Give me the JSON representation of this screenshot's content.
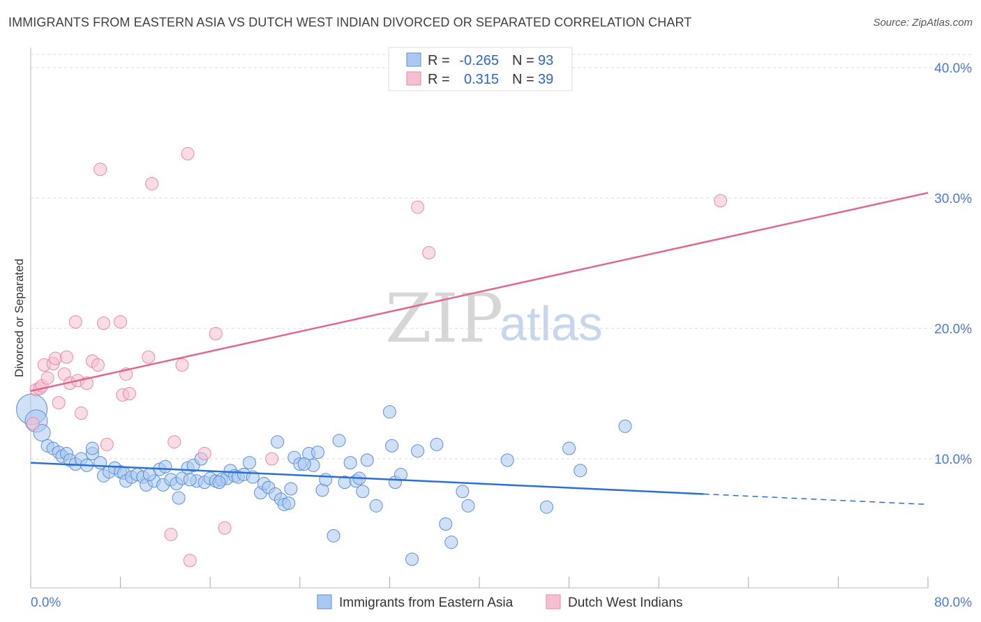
{
  "header": {
    "title": "IMMIGRANTS FROM EASTERN ASIA VS DUTCH WEST INDIAN DIVORCED OR SEPARATED CORRELATION CHART",
    "source": "Source: ZipAtlas.com"
  },
  "watermark": {
    "zip": "ZIP",
    "atlas": "atlas"
  },
  "colors": {
    "blue_fill": "#aac8f0",
    "blue_stroke": "#5b8fd8",
    "blue_line": "#2a6fd6",
    "pink_fill": "#f6bfd0",
    "pink_stroke": "#e98aa8",
    "pink_line": "#e06890",
    "grid": "#d8d8d8",
    "tick_label": "#4a7bd0"
  },
  "legend": {
    "rows": [
      {
        "r_label": "R =",
        "r_value": "-0.265",
        "n_label": "N =",
        "n_value": "93"
      },
      {
        "r_label": "R =",
        "r_value": "0.315",
        "n_label": "N =",
        "n_value": "39"
      }
    ]
  },
  "chart_data": {
    "type": "scatter",
    "title": "IMMIGRANTS FROM EASTERN ASIA VS DUTCH WEST INDIAN DIVORCED OR SEPARATED CORRELATION CHART",
    "xlabel": "",
    "ylabel": "Divorced or Separated",
    "xlim": [
      0,
      80
    ],
    "ylim": [
      0,
      42
    ],
    "x_tick_labels": [
      "0.0%",
      "80.0%"
    ],
    "y_ticks": [
      10,
      20,
      30,
      40
    ],
    "y_tick_labels": [
      "10.0%",
      "20.0%",
      "30.0%",
      "40.0%"
    ],
    "grid": "horizontal dashed",
    "legend_placement": "top-center",
    "series": [
      {
        "name": "Immigrants from Eastern Asia",
        "color": "#aac8f0",
        "points": [
          [
            0.1,
            13.8
          ],
          [
            0.5,
            12.9
          ],
          [
            1.0,
            12.0
          ],
          [
            1.5,
            11.0
          ],
          [
            2.0,
            10.8
          ],
          [
            2.5,
            10.5
          ],
          [
            2.8,
            10.2
          ],
          [
            3.2,
            10.4
          ],
          [
            3.5,
            9.9
          ],
          [
            4.0,
            9.6
          ],
          [
            4.5,
            10.0
          ],
          [
            5.0,
            9.5
          ],
          [
            5.5,
            10.4
          ],
          [
            5.5,
            10.8
          ],
          [
            6.2,
            9.7
          ],
          [
            6.5,
            8.7
          ],
          [
            7.0,
            9.0
          ],
          [
            7.5,
            9.3
          ],
          [
            8.0,
            9.0
          ],
          [
            8.3,
            8.9
          ],
          [
            8.5,
            8.3
          ],
          [
            9.0,
            8.6
          ],
          [
            9.5,
            8.8
          ],
          [
            10.0,
            8.6
          ],
          [
            10.3,
            8.0
          ],
          [
            11.0,
            8.3
          ],
          [
            11.5,
            9.2
          ],
          [
            11.8,
            8.0
          ],
          [
            12.0,
            9.4
          ],
          [
            12.5,
            8.4
          ],
          [
            13.0,
            8.1
          ],
          [
            13.2,
            7.0
          ],
          [
            13.5,
            8.5
          ],
          [
            14.0,
            9.3
          ],
          [
            14.5,
            9.5
          ],
          [
            14.8,
            8.3
          ],
          [
            15.2,
            10.0
          ],
          [
            15.5,
            8.2
          ],
          [
            16.0,
            8.5
          ],
          [
            16.5,
            8.3
          ],
          [
            17.0,
            8.4
          ],
          [
            17.5,
            8.5
          ],
          [
            17.8,
            9.1
          ],
          [
            18.2,
            8.7
          ],
          [
            18.5,
            8.6
          ],
          [
            19.0,
            8.8
          ],
          [
            19.5,
            9.7
          ],
          [
            19.8,
            8.6
          ],
          [
            20.5,
            7.4
          ],
          [
            20.8,
            8.1
          ],
          [
            21.2,
            7.8
          ],
          [
            21.8,
            7.3
          ],
          [
            22.0,
            11.3
          ],
          [
            22.3,
            6.9
          ],
          [
            22.6,
            6.5
          ],
          [
            23.2,
            7.7
          ],
          [
            23.0,
            6.6
          ],
          [
            23.5,
            10.1
          ],
          [
            24.0,
            9.6
          ],
          [
            24.8,
            10.4
          ],
          [
            25.2,
            9.5
          ],
          [
            25.6,
            10.5
          ],
          [
            26.0,
            7.6
          ],
          [
            26.3,
            8.4
          ],
          [
            27.0,
            4.1
          ],
          [
            27.5,
            11.4
          ],
          [
            28.0,
            8.2
          ],
          [
            28.5,
            9.7
          ],
          [
            29.0,
            8.3
          ],
          [
            29.3,
            8.5
          ],
          [
            29.6,
            7.5
          ],
          [
            30.0,
            9.9
          ],
          [
            30.8,
            6.4
          ],
          [
            32.0,
            13.6
          ],
          [
            32.2,
            11.0
          ],
          [
            32.5,
            8.2
          ],
          [
            33.0,
            8.8
          ],
          [
            34.0,
            2.3
          ],
          [
            34.5,
            10.6
          ],
          [
            36.2,
            11.1
          ],
          [
            37.0,
            5.0
          ],
          [
            37.5,
            3.6
          ],
          [
            38.5,
            7.5
          ],
          [
            39.0,
            6.4
          ],
          [
            42.5,
            9.9
          ],
          [
            46.0,
            6.3
          ],
          [
            48.0,
            10.8
          ],
          [
            49.0,
            9.1
          ],
          [
            53.0,
            12.5
          ],
          [
            14.2,
            8.4
          ],
          [
            16.8,
            8.2
          ],
          [
            24.4,
            9.6
          ],
          [
            10.6,
            8.8
          ]
        ],
        "trend": {
          "x0": 0,
          "y0": 9.7,
          "x1": 60,
          "y1": 7.3
        },
        "trend_dashed": {
          "x0": 60,
          "y0": 7.3,
          "x1": 80,
          "y1": 6.5
        }
      },
      {
        "name": "Dutch West Indians",
        "color": "#f6bfd0",
        "points": [
          [
            0.2,
            12.7
          ],
          [
            0.5,
            15.3
          ],
          [
            0.8,
            15.4
          ],
          [
            1.0,
            15.6
          ],
          [
            1.2,
            17.2
          ],
          [
            1.5,
            16.2
          ],
          [
            2.0,
            17.3
          ],
          [
            2.2,
            17.7
          ],
          [
            2.5,
            14.3
          ],
          [
            3.0,
            16.5
          ],
          [
            3.2,
            17.8
          ],
          [
            3.5,
            15.8
          ],
          [
            4.0,
            20.5
          ],
          [
            4.2,
            16.0
          ],
          [
            4.5,
            13.5
          ],
          [
            5.0,
            15.8
          ],
          [
            5.5,
            17.5
          ],
          [
            6.0,
            17.2
          ],
          [
            6.2,
            32.2
          ],
          [
            6.5,
            20.4
          ],
          [
            6.8,
            11.1
          ],
          [
            8.0,
            20.5
          ],
          [
            8.2,
            14.9
          ],
          [
            8.5,
            16.5
          ],
          [
            8.8,
            15.0
          ],
          [
            10.5,
            17.8
          ],
          [
            10.8,
            31.1
          ],
          [
            12.5,
            4.2
          ],
          [
            12.8,
            11.3
          ],
          [
            13.5,
            17.2
          ],
          [
            14.0,
            33.4
          ],
          [
            14.2,
            2.2
          ],
          [
            15.5,
            10.4
          ],
          [
            16.5,
            19.6
          ],
          [
            17.3,
            4.7
          ],
          [
            21.5,
            10.0
          ],
          [
            34.5,
            29.3
          ],
          [
            35.5,
            25.8
          ],
          [
            61.5,
            29.8
          ]
        ],
        "trend": {
          "x0": 0,
          "y0": 15.2,
          "x1": 80,
          "y1": 30.4
        }
      }
    ]
  }
}
